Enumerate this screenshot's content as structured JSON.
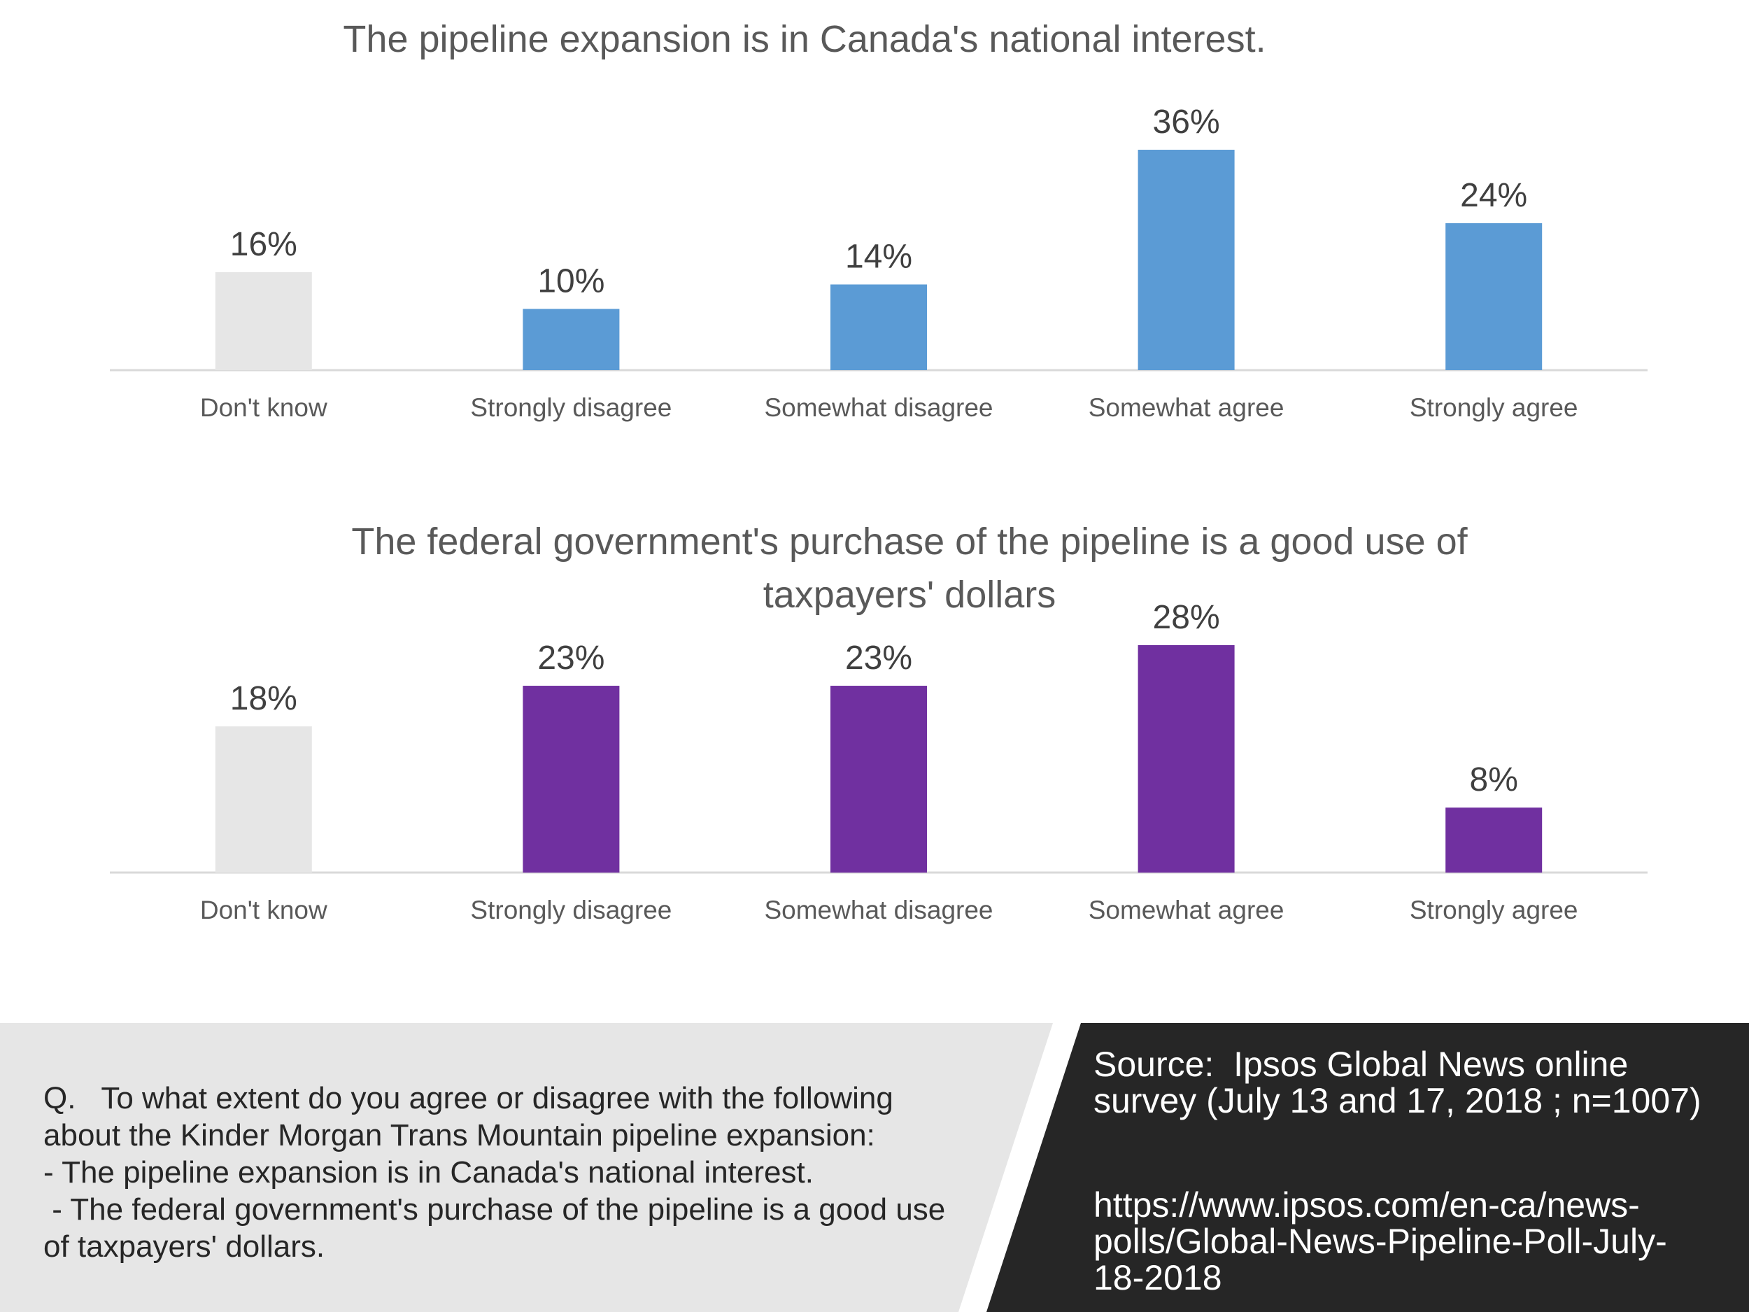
{
  "chart_data": [
    {
      "type": "bar",
      "title": "The pipeline expansion is in Canada's national interest.",
      "categories": [
        "Don't know",
        "Strongly disagree",
        "Somewhat disagree",
        "Somewhat agree",
        "Strongly agree"
      ],
      "values": [
        16,
        10,
        14,
        36,
        24
      ],
      "value_labels": [
        "16%",
        "10%",
        "14%",
        "36%",
        "24%"
      ],
      "bar_colors": [
        "#e6e6e6",
        "#5b9bd5",
        "#5b9bd5",
        "#5b9bd5",
        "#5b9bd5"
      ],
      "ylim": [
        0,
        40
      ],
      "grid": false,
      "legend": false
    },
    {
      "type": "bar",
      "title": "The federal government's purchase of the pipeline is a good use of taxpayers' dollars",
      "categories": [
        "Don't know",
        "Strongly disagree",
        "Somewhat disagree",
        "Somewhat agree",
        "Strongly agree"
      ],
      "values": [
        18,
        23,
        23,
        28,
        8
      ],
      "value_labels": [
        "18%",
        "23%",
        "23%",
        "28%",
        "8%"
      ],
      "bar_colors": [
        "#e6e6e6",
        "#7030a0",
        "#7030a0",
        "#7030a0",
        "#7030a0"
      ],
      "ylim": [
        0,
        40
      ],
      "grid": false,
      "legend": false
    }
  ],
  "footer": {
    "question_lines": [
      "Q.   To what extent do you agree or disagree with the following",
      "about the Kinder Morgan Trans Mountain pipeline expansion:",
      "- The pipeline expansion is in Canada's national interest.",
      " - The federal government's purchase of the pipeline is a good use",
      "of taxpayers' dollars."
    ],
    "source_lines": [
      "Source:  Ipsos Global News online",
      "survey (July 13 and 17, 2018 ; n=1007)"
    ],
    "url_lines": [
      "https://www.ipsos.com/en-ca/news-",
      "polls/Global-News-Pipeline-Poll-July-",
      "18-2018"
    ]
  },
  "colors": {
    "agree_blue": "#5b9bd5",
    "agree_purple": "#7030a0",
    "dont_know_gray": "#e6e6e6",
    "footer_left_bg": "#e6e6e6",
    "footer_right_bg": "#262626"
  }
}
